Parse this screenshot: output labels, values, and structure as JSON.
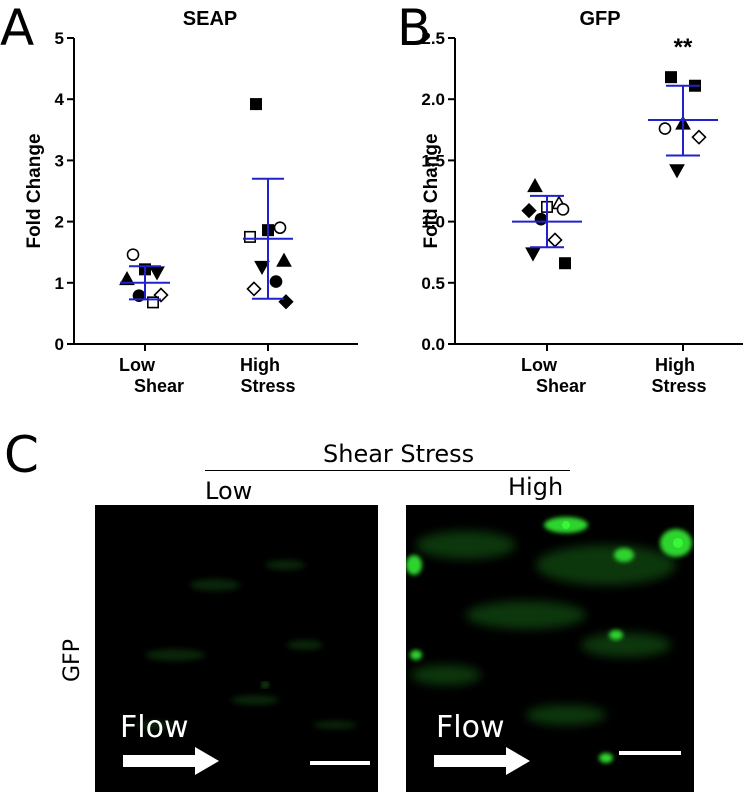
{
  "panels": {
    "a": {
      "letter": "A"
    },
    "b": {
      "letter": "B"
    },
    "c": {
      "letter": "C"
    }
  },
  "chart_data": [
    {
      "type": "scatter",
      "title": "SEAP",
      "ylabel": "Fold Change",
      "xlabel": "",
      "categories": [
        "Low Shear",
        "High Stress"
      ],
      "category_lines": [
        [
          "Low",
          "Shear"
        ],
        [
          "High",
          "Stress"
        ]
      ],
      "ylim": [
        0,
        5
      ],
      "yticks": [
        "0",
        "1",
        "2",
        "3",
        "4",
        "5"
      ],
      "series": [
        {
          "category": "Low Shear",
          "mean": 1.0,
          "sd_upper": 1.27,
          "sd_lower": 0.73,
          "points": [
            {
              "y": 1.46,
              "marker": "circle-open"
            },
            {
              "y": 1.17,
              "marker": "triangle-down-filled"
            },
            {
              "y": 1.22,
              "marker": "square-filled"
            },
            {
              "y": 1.06,
              "marker": "triangle-up-filled"
            },
            {
              "y": 0.8,
              "marker": "diamond-open"
            },
            {
              "y": 0.79,
              "marker": "circle-filled"
            },
            {
              "y": 0.68,
              "marker": "square-open"
            }
          ]
        },
        {
          "category": "High Stress",
          "mean": 1.72,
          "sd_upper": 2.7,
          "sd_lower": 0.74,
          "points": [
            {
              "y": 3.92,
              "marker": "square-filled"
            },
            {
              "y": 1.9,
              "marker": "circle-open"
            },
            {
              "y": 1.86,
              "marker": "square-filled"
            },
            {
              "y": 1.75,
              "marker": "square-open"
            },
            {
              "y": 1.36,
              "marker": "triangle-up-filled"
            },
            {
              "y": 1.26,
              "marker": "triangle-down-filled"
            },
            {
              "y": 1.02,
              "marker": "circle-filled"
            },
            {
              "y": 0.9,
              "marker": "diamond-open"
            },
            {
              "y": 0.69,
              "marker": "diamond-filled"
            }
          ]
        }
      ]
    },
    {
      "type": "scatter",
      "title": "GFP",
      "ylabel": "Fold Change",
      "xlabel": "",
      "categories": [
        "Low Shear",
        "High Stress"
      ],
      "category_lines": [
        [
          "Low",
          "Shear"
        ],
        [
          "High",
          "Stress"
        ]
      ],
      "ylim": [
        0,
        2.5
      ],
      "yticks": [
        "0.0",
        "0.5",
        "1.0",
        "1.5",
        "2.0",
        "2.5"
      ],
      "annotation": "**",
      "series": [
        {
          "category": "Low Shear",
          "mean": 1.0,
          "sd_upper": 1.21,
          "sd_lower": 0.79,
          "points": [
            {
              "y": 1.29,
              "marker": "triangle-up-filled"
            },
            {
              "y": 1.15,
              "marker": "triangle-up-open"
            },
            {
              "y": 1.12,
              "marker": "square-open"
            },
            {
              "y": 1.09,
              "marker": "diamond-filled"
            },
            {
              "y": 1.1,
              "marker": "circle-open"
            },
            {
              "y": 1.02,
              "marker": "circle-filled"
            },
            {
              "y": 0.85,
              "marker": "diamond-open"
            },
            {
              "y": 0.74,
              "marker": "triangle-down-filled"
            },
            {
              "y": 0.66,
              "marker": "square-filled"
            }
          ]
        },
        {
          "category": "High Stress",
          "mean": 1.83,
          "sd_upper": 2.11,
          "sd_lower": 1.54,
          "points": [
            {
              "y": 2.18,
              "marker": "square-filled"
            },
            {
              "y": 2.11,
              "marker": "square-filled"
            },
            {
              "y": 1.8,
              "marker": "triangle-up-filled"
            },
            {
              "y": 1.76,
              "marker": "circle-open"
            },
            {
              "y": 1.69,
              "marker": "diamond-open"
            },
            {
              "y": 1.42,
              "marker": "triangle-down-filled"
            }
          ]
        }
      ]
    }
  ],
  "micrograph": {
    "header": "Shear Stress",
    "low_label": "Low",
    "high_label": "High",
    "row_label": "GFP",
    "flow_label": "Flow",
    "colors": {
      "background": "#000000",
      "fluorescence": "#22dd22",
      "arrow": "#ffffff"
    }
  }
}
